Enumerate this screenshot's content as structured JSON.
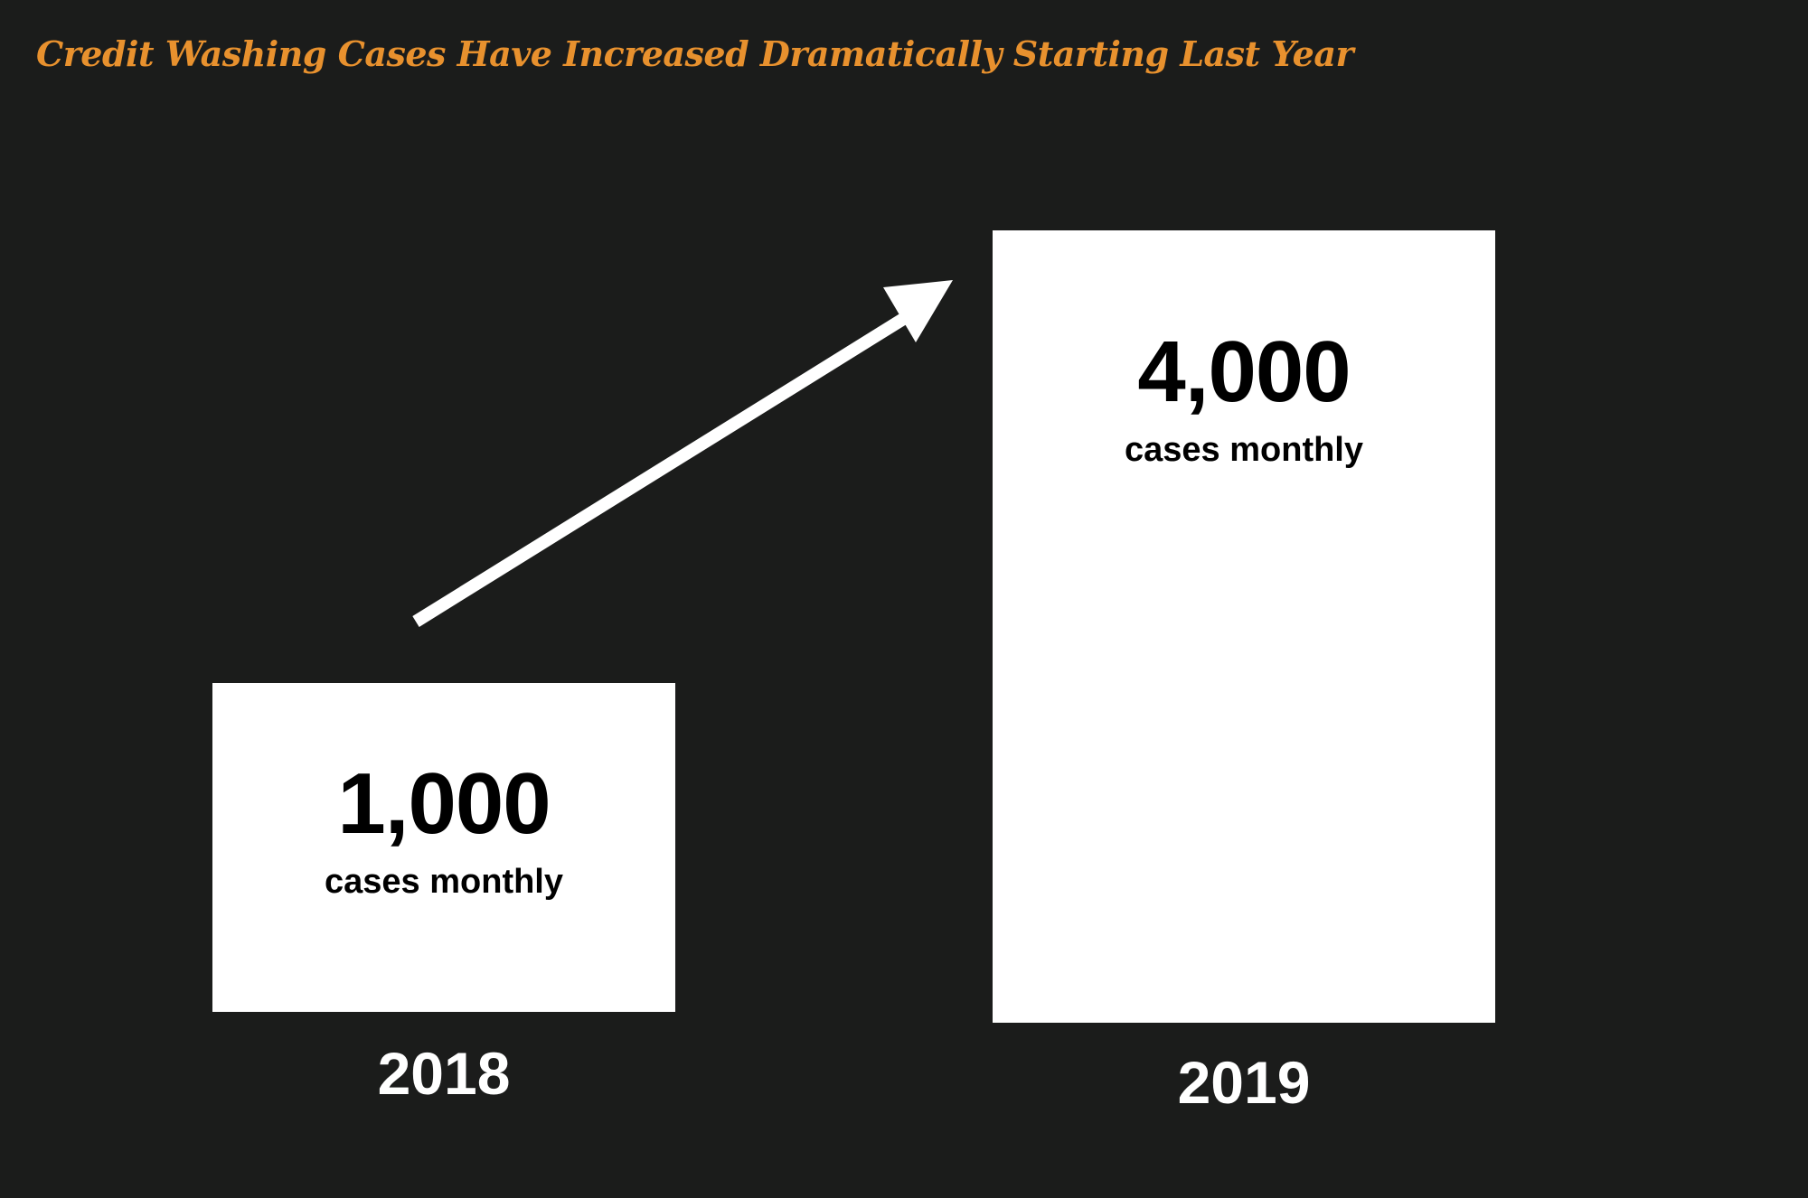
{
  "title": "Credit Washing Cases Have Increased Dramatically Starting Last Year",
  "colors": {
    "background": "#1b1c1b",
    "title": "#e8912e",
    "bar": "#ffffff",
    "value_text": "#000000",
    "category_text": "#ffffff",
    "arrow": "#ffffff"
  },
  "chart_data": {
    "type": "bar",
    "title": "Credit Washing Cases Have Increased Dramatically Starting Last Year",
    "categories": [
      "2018",
      "2019"
    ],
    "values": [
      1000,
      4000
    ],
    "value_labels": [
      "1,000",
      "4,000"
    ],
    "unit_label": "cases monthly",
    "xlabel": "",
    "ylabel": "",
    "grid": false,
    "legend": "none",
    "annotations": [
      "trend-arrow-up"
    ]
  }
}
